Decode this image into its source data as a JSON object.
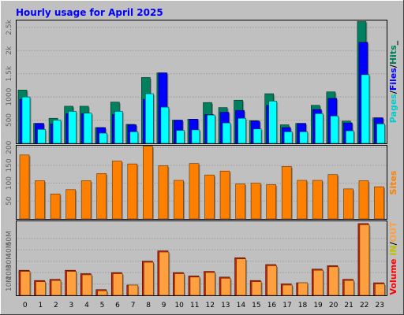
{
  "title": "Hourly usage for April 2025",
  "colors": {
    "background": "#C0C0C0",
    "title": "#0000FF",
    "hits": "#00805F",
    "files": "#0000FF",
    "pages": "#00FFFF",
    "sites": "#FF8000",
    "volume": "#FF0000",
    "in_out": "#FFA040",
    "in_out_label": "#C0C000"
  },
  "chart_data": [
    {
      "type": "bar",
      "title": "",
      "categories": [
        "0",
        "1",
        "2",
        "3",
        "4",
        "5",
        "6",
        "7",
        "8",
        "9",
        "10",
        "11",
        "12",
        "13",
        "14",
        "15",
        "16",
        "17",
        "18",
        "19",
        "20",
        "21",
        "22",
        "23"
      ],
      "ylabel_parts": [
        "Pages",
        "/",
        "Files",
        "/",
        "Hits",
        "_"
      ],
      "ylim": [
        0,
        2650
      ],
      "yticks": [
        {
          "value": 500,
          "label": "500"
        },
        {
          "value": 1000,
          "label": "1000"
        },
        {
          "value": 1500,
          "label": "1.5k"
        },
        {
          "value": 2000,
          "label": "2k"
        },
        {
          "value": 2500,
          "label": "2.5k"
        }
      ],
      "series": [
        {
          "name": "Hits",
          "values": [
            1150,
            430,
            540,
            800,
            800,
            340,
            890,
            410,
            1420,
            1520,
            500,
            520,
            880,
            770,
            930,
            490,
            1070,
            400,
            430,
            820,
            1110,
            480,
            2630,
            550
          ]
        },
        {
          "name": "Files",
          "values": [
            950,
            430,
            420,
            640,
            640,
            340,
            620,
            400,
            950,
            1520,
            500,
            520,
            620,
            670,
            710,
            480,
            820,
            340,
            430,
            730,
            970,
            440,
            2180,
            550
          ]
        },
        {
          "name": "Pages",
          "values": [
            1000,
            300,
            500,
            690,
            650,
            220,
            690,
            250,
            1070,
            780,
            280,
            290,
            610,
            440,
            540,
            310,
            910,
            250,
            250,
            640,
            590,
            270,
            1480,
            420
          ]
        }
      ]
    },
    {
      "type": "bar",
      "title": "",
      "categories": [
        "0",
        "1",
        "2",
        "3",
        "4",
        "5",
        "6",
        "7",
        "8",
        "9",
        "10",
        "11",
        "12",
        "13",
        "14",
        "15",
        "16",
        "17",
        "18",
        "19",
        "20",
        "21",
        "22",
        "23"
      ],
      "ylabel": "Sites",
      "ylim": [
        0,
        205
      ],
      "yticks": [
        {
          "value": 50,
          "label": "50"
        },
        {
          "value": 100,
          "label": "100"
        },
        {
          "value": 150,
          "label": "150"
        },
        {
          "value": 200,
          "label": "200"
        }
      ],
      "series": [
        {
          "name": "Sites",
          "values": [
            179,
            107,
            70,
            82,
            107,
            127,
            162,
            154,
            204,
            149,
            108,
            155,
            123,
            134,
            98,
            100,
            96,
            147,
            108,
            108,
            124,
            84,
            107,
            90
          ]
        }
      ]
    },
    {
      "type": "bar",
      "title": "",
      "categories": [
        "0",
        "1",
        "2",
        "3",
        "4",
        "5",
        "6",
        "7",
        "8",
        "9",
        "10",
        "11",
        "12",
        "13",
        "14",
        "15",
        "16",
        "17",
        "18",
        "19",
        "20",
        "21",
        "22",
        "23"
      ],
      "ylabel_parts": [
        "Volume",
        " ",
        "IN",
        "/",
        "OUT"
      ],
      "ylim": [
        0,
        65
      ],
      "yticks": [
        {
          "value": 10,
          "label": "10M"
        },
        {
          "value": 20,
          "label": "20M"
        },
        {
          "value": 30,
          "label": "30M"
        },
        {
          "value": 40,
          "label": "40M"
        },
        {
          "value": 50,
          "label": "50M"
        }
      ],
      "series": [
        {
          "name": "IN",
          "values": [
            22,
            13,
            14,
            22,
            19,
            5,
            20,
            9,
            30,
            39,
            20,
            17,
            21,
            16,
            33,
            13,
            27,
            10,
            11,
            23,
            26,
            14,
            63,
            11
          ]
        },
        {
          "name": "OUT",
          "values": [
            21,
            12,
            13,
            21,
            18,
            4,
            19,
            9,
            29,
            38,
            19,
            16,
            20,
            15,
            32,
            12,
            26,
            9,
            11,
            22,
            25,
            13,
            62,
            10
          ]
        }
      ]
    }
  ]
}
